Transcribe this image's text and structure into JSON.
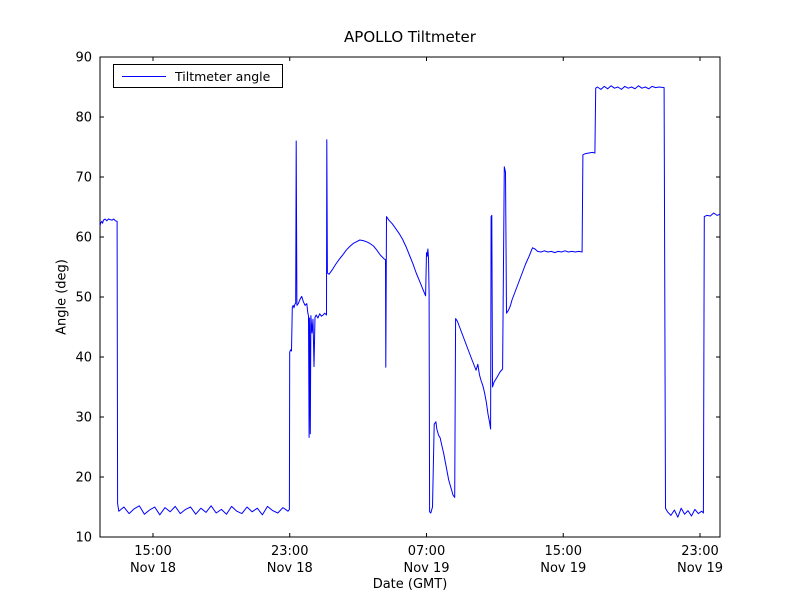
{
  "figure": {
    "background": "#ffffff",
    "axes_color": "#000000"
  },
  "chart_data": {
    "type": "line",
    "title": "APOLLO Tiltmeter",
    "xlabel": "Date (GMT)",
    "ylabel": "Angle (deg)",
    "grid": false,
    "legend_position": "upper left",
    "legend": [
      {
        "label": "Tiltmeter angle",
        "color": "#0000ff"
      }
    ],
    "x_unit": "hours since Nov 18 00:00 GMT",
    "xlim": [
      11.9,
      48.17
    ],
    "ylim": [
      10,
      90
    ],
    "xticks": [
      {
        "value": 15,
        "line1": "15:00",
        "line2": "Nov 18"
      },
      {
        "value": 23,
        "line1": "23:00",
        "line2": "Nov 18"
      },
      {
        "value": 31,
        "line1": "07:00",
        "line2": "Nov 19"
      },
      {
        "value": 39,
        "line1": "15:00",
        "line2": "Nov 19"
      },
      {
        "value": 47,
        "line1": "23:00",
        "line2": "Nov 19"
      }
    ],
    "yticks": [
      10,
      20,
      30,
      40,
      50,
      60,
      70,
      80,
      90
    ],
    "series": [
      {
        "name": "Tiltmeter angle",
        "color": "#0000ff",
        "points": [
          [
            11.9,
            61.9
          ],
          [
            11.95,
            62.4
          ],
          [
            12.0,
            62.6
          ],
          [
            12.05,
            62.3
          ],
          [
            12.1,
            62.8
          ],
          [
            12.2,
            63.0
          ],
          [
            12.3,
            62.7
          ],
          [
            12.4,
            63.0
          ],
          [
            12.5,
            62.9
          ],
          [
            12.6,
            62.8
          ],
          [
            12.7,
            63.0
          ],
          [
            12.8,
            62.7
          ],
          [
            12.9,
            62.6
          ],
          [
            12.93,
            15.6
          ],
          [
            13.0,
            14.3
          ],
          [
            13.3,
            15.0
          ],
          [
            13.6,
            13.9
          ],
          [
            13.9,
            14.7
          ],
          [
            14.2,
            15.2
          ],
          [
            14.5,
            13.8
          ],
          [
            14.8,
            14.5
          ],
          [
            15.1,
            15.0
          ],
          [
            15.4,
            13.7
          ],
          [
            15.7,
            14.9
          ],
          [
            16.0,
            14.2
          ],
          [
            16.3,
            15.1
          ],
          [
            16.6,
            13.9
          ],
          [
            16.9,
            14.6
          ],
          [
            17.2,
            15.0
          ],
          [
            17.5,
            13.8
          ],
          [
            17.8,
            14.8
          ],
          [
            18.1,
            14.1
          ],
          [
            18.4,
            15.2
          ],
          [
            18.7,
            14.0
          ],
          [
            19.0,
            14.6
          ],
          [
            19.3,
            13.8
          ],
          [
            19.6,
            15.1
          ],
          [
            19.9,
            14.3
          ],
          [
            20.2,
            13.9
          ],
          [
            20.5,
            15.0
          ],
          [
            20.8,
            14.2
          ],
          [
            21.1,
            14.8
          ],
          [
            21.4,
            13.7
          ],
          [
            21.7,
            15.1
          ],
          [
            22.0,
            14.4
          ],
          [
            22.3,
            14.0
          ],
          [
            22.6,
            14.9
          ],
          [
            22.9,
            14.3
          ],
          [
            22.98,
            14.6
          ],
          [
            23.0,
            40.8
          ],
          [
            23.05,
            41.2
          ],
          [
            23.1,
            41.0
          ],
          [
            23.15,
            48.3
          ],
          [
            23.2,
            48.6
          ],
          [
            23.25,
            48.2
          ],
          [
            23.3,
            48.8
          ],
          [
            23.35,
            49.0
          ],
          [
            23.38,
            76.0
          ],
          [
            23.42,
            48.6
          ],
          [
            23.5,
            48.9
          ],
          [
            23.6,
            49.6
          ],
          [
            23.7,
            50.1
          ],
          [
            23.8,
            49.2
          ],
          [
            23.9,
            48.6
          ],
          [
            24.0,
            48.9
          ],
          [
            24.05,
            47.5
          ],
          [
            24.1,
            46.8
          ],
          [
            24.13,
            26.6
          ],
          [
            24.16,
            46.5
          ],
          [
            24.2,
            27.2
          ],
          [
            24.24,
            46.9
          ],
          [
            24.3,
            44.0
          ],
          [
            24.36,
            46.3
          ],
          [
            24.42,
            38.4
          ],
          [
            24.48,
            46.6
          ],
          [
            24.55,
            47.0
          ],
          [
            24.65,
            46.5
          ],
          [
            24.75,
            47.2
          ],
          [
            24.85,
            46.8
          ],
          [
            24.95,
            47.0
          ],
          [
            25.05,
            47.3
          ],
          [
            25.15,
            47.0
          ],
          [
            25.17,
            76.2
          ],
          [
            25.2,
            54.0
          ],
          [
            25.3,
            53.8
          ],
          [
            25.5,
            54.6
          ],
          [
            25.7,
            55.5
          ],
          [
            25.9,
            56.3
          ],
          [
            26.1,
            57.0
          ],
          [
            26.3,
            57.8
          ],
          [
            26.5,
            58.4
          ],
          [
            26.7,
            58.9
          ],
          [
            26.9,
            59.2
          ],
          [
            27.1,
            59.5
          ],
          [
            27.3,
            59.4
          ],
          [
            27.5,
            59.2
          ],
          [
            27.7,
            58.9
          ],
          [
            27.9,
            58.5
          ],
          [
            28.1,
            57.8
          ],
          [
            28.3,
            57.0
          ],
          [
            28.5,
            56.4
          ],
          [
            28.6,
            56.2
          ],
          [
            28.62,
            38.3
          ],
          [
            28.66,
            63.4
          ],
          [
            28.8,
            62.8
          ],
          [
            29.0,
            62.2
          ],
          [
            29.2,
            61.4
          ],
          [
            29.4,
            60.6
          ],
          [
            29.6,
            59.6
          ],
          [
            29.8,
            58.4
          ],
          [
            30.0,
            57.0
          ],
          [
            30.2,
            55.6
          ],
          [
            30.4,
            54.0
          ],
          [
            30.6,
            52.6
          ],
          [
            30.8,
            51.2
          ],
          [
            30.95,
            50.2
          ],
          [
            31.0,
            57.4
          ],
          [
            31.04,
            56.8
          ],
          [
            31.08,
            58.0
          ],
          [
            31.12,
            56.5
          ],
          [
            31.15,
            50.5
          ],
          [
            31.18,
            14.2
          ],
          [
            31.25,
            14.0
          ],
          [
            31.35,
            15.0
          ],
          [
            31.45,
            28.8
          ],
          [
            31.55,
            29.2
          ],
          [
            31.6,
            28.0
          ],
          [
            31.7,
            27.0
          ],
          [
            31.8,
            26.5
          ],
          [
            31.9,
            25.2
          ],
          [
            32.0,
            24.0
          ],
          [
            32.1,
            22.5
          ],
          [
            32.2,
            21.0
          ],
          [
            32.3,
            19.5
          ],
          [
            32.45,
            18.0
          ],
          [
            32.55,
            17.0
          ],
          [
            32.65,
            16.6
          ],
          [
            32.7,
            46.4
          ],
          [
            32.8,
            46.0
          ],
          [
            33.0,
            44.5
          ],
          [
            33.2,
            43.0
          ],
          [
            33.4,
            41.5
          ],
          [
            33.6,
            40.0
          ],
          [
            33.8,
            38.5
          ],
          [
            33.9,
            37.8
          ],
          [
            34.0,
            38.8
          ],
          [
            34.1,
            37.0
          ],
          [
            34.2,
            36.0
          ],
          [
            34.3,
            35.2
          ],
          [
            34.4,
            34.0
          ],
          [
            34.5,
            32.5
          ],
          [
            34.6,
            30.5
          ],
          [
            34.7,
            29.0
          ],
          [
            34.75,
            28.0
          ],
          [
            34.78,
            63.4
          ],
          [
            34.82,
            63.6
          ],
          [
            34.86,
            35.0
          ],
          [
            34.95,
            35.8
          ],
          [
            35.1,
            36.5
          ],
          [
            35.3,
            37.5
          ],
          [
            35.45,
            38.0
          ],
          [
            35.55,
            71.7
          ],
          [
            35.62,
            70.8
          ],
          [
            35.68,
            47.3
          ],
          [
            35.8,
            47.8
          ],
          [
            35.9,
            48.5
          ],
          [
            36.0,
            49.5
          ],
          [
            36.2,
            51.0
          ],
          [
            36.4,
            52.5
          ],
          [
            36.6,
            54.0
          ],
          [
            36.8,
            55.5
          ],
          [
            37.0,
            56.8
          ],
          [
            37.1,
            57.5
          ],
          [
            37.2,
            58.2
          ],
          [
            37.35,
            58.0
          ],
          [
            37.5,
            57.6
          ],
          [
            37.7,
            57.5
          ],
          [
            37.9,
            57.7
          ],
          [
            38.1,
            57.5
          ],
          [
            38.3,
            57.6
          ],
          [
            38.5,
            57.4
          ],
          [
            38.7,
            57.6
          ],
          [
            38.9,
            57.5
          ],
          [
            39.1,
            57.7
          ],
          [
            39.3,
            57.5
          ],
          [
            39.5,
            57.6
          ],
          [
            39.7,
            57.5
          ],
          [
            39.9,
            57.6
          ],
          [
            40.1,
            57.5
          ],
          [
            40.15,
            73.7
          ],
          [
            40.3,
            73.9
          ],
          [
            40.5,
            74.0
          ],
          [
            40.7,
            74.1
          ],
          [
            40.85,
            74.0
          ],
          [
            40.9,
            84.8
          ],
          [
            41.0,
            85.0
          ],
          [
            41.2,
            84.6
          ],
          [
            41.4,
            85.1
          ],
          [
            41.6,
            84.7
          ],
          [
            41.8,
            85.2
          ],
          [
            42.0,
            84.8
          ],
          [
            42.2,
            85.0
          ],
          [
            42.4,
            84.6
          ],
          [
            42.6,
            85.1
          ],
          [
            42.8,
            84.8
          ],
          [
            43.0,
            85.0
          ],
          [
            43.2,
            84.7
          ],
          [
            43.4,
            85.2
          ],
          [
            43.6,
            84.8
          ],
          [
            43.8,
            85.0
          ],
          [
            44.0,
            84.7
          ],
          [
            44.2,
            85.1
          ],
          [
            44.4,
            84.9
          ],
          [
            44.6,
            85.0
          ],
          [
            44.9,
            84.9
          ],
          [
            44.98,
            14.8
          ],
          [
            45.1,
            14.2
          ],
          [
            45.3,
            13.6
          ],
          [
            45.5,
            14.5
          ],
          [
            45.7,
            13.3
          ],
          [
            45.9,
            14.8
          ],
          [
            46.1,
            13.8
          ],
          [
            46.3,
            14.4
          ],
          [
            46.5,
            13.5
          ],
          [
            46.7,
            14.6
          ],
          [
            46.9,
            13.9
          ],
          [
            47.1,
            14.3
          ],
          [
            47.2,
            14.0
          ],
          [
            47.25,
            63.4
          ],
          [
            47.4,
            63.6
          ],
          [
            47.6,
            63.5
          ],
          [
            47.8,
            64.0
          ],
          [
            48.0,
            63.6
          ],
          [
            48.17,
            63.8
          ]
        ]
      }
    ]
  }
}
